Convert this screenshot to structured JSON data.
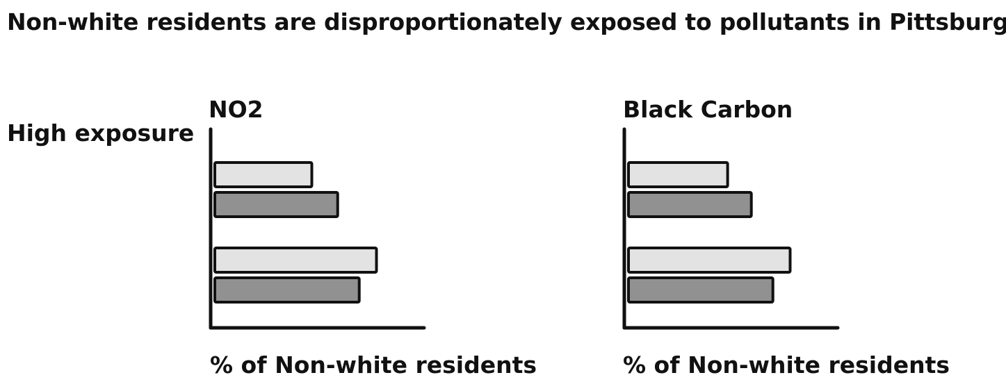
{
  "title": "Non-white residents are disproportionately exposed to pollutants in Pittsburgh",
  "row_label": "High exposure",
  "colors": {
    "light_bar": "#e3e3e3",
    "dark_bar": "#919191",
    "stroke": "#111111"
  },
  "chart_data": [
    {
      "type": "bar",
      "orientation": "horizontal",
      "title": "NO2",
      "xlabel": "% of Non-white residents",
      "ylabel": "",
      "groups": [
        {
          "values": [
            45,
            57
          ]
        },
        {
          "values": [
            75,
            67
          ]
        }
      ],
      "xlim": [
        0,
        100
      ],
      "grid": false
    },
    {
      "type": "bar",
      "orientation": "horizontal",
      "title": "Black Carbon",
      "xlabel": "% of Non-white residents",
      "ylabel": "",
      "groups": [
        {
          "values": [
            46,
            57
          ]
        },
        {
          "values": [
            75,
            67
          ]
        }
      ],
      "xlim": [
        0,
        100
      ],
      "grid": false
    }
  ]
}
